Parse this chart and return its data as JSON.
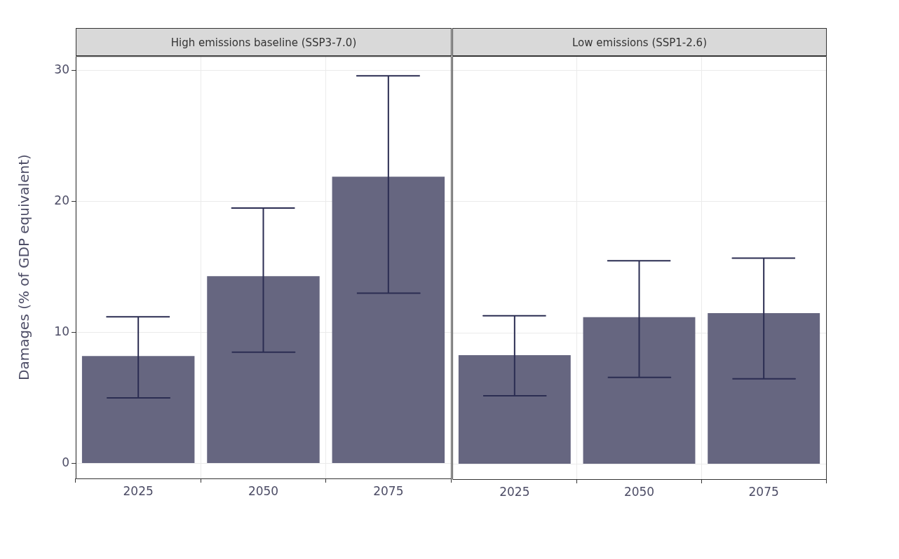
{
  "chart_data": [
    {
      "type": "bar",
      "title": "High emissions baseline (SSP3-7.0)",
      "ylabel": "Damages (% of GDP equivalent)",
      "categories": [
        "2025",
        "2050",
        "2075"
      ],
      "values": [
        8.2,
        14.3,
        21.9
      ],
      "color": "#666680",
      "errors": [
        [
          5.0,
          11.2
        ],
        [
          8.5,
          19.5
        ],
        [
          13.0,
          29.6
        ]
      ],
      "ylim": [
        -1.15,
        31.1
      ],
      "yticks": [
        0,
        10,
        20,
        30
      ],
      "grid": true
    },
    {
      "type": "bar",
      "title": "Low emissions (SSP1-2.6)",
      "categories": [
        "2025",
        "2050",
        "2075"
      ],
      "values": [
        8.3,
        11.2,
        11.5
      ],
      "color": "#666680",
      "errors": [
        [
          5.2,
          11.3
        ],
        [
          6.6,
          15.5
        ],
        [
          6.5,
          15.7
        ]
      ],
      "ylim": [
        -1.15,
        31.1
      ],
      "yticks": [
        0,
        10,
        20,
        30
      ],
      "grid": true,
      "tick_labels": "x"
    }
  ]
}
